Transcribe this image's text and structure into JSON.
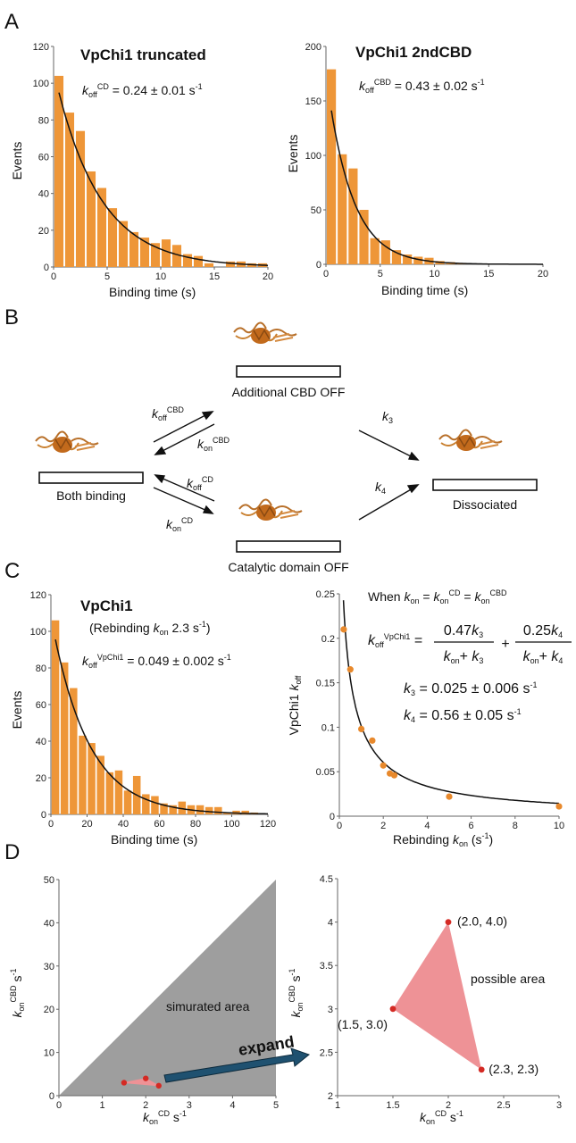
{
  "colors": {
    "bar": "#ee9638",
    "fit": "#111111",
    "point": "#e8892c",
    "sim": "#9e9e9e",
    "poss": "#ee9296",
    "red": "#d42a24",
    "arrow": "#1f5170"
  },
  "panels": {
    "a": "A",
    "b": "B",
    "c": "C",
    "d": "D"
  },
  "panelB": {
    "states": {
      "top": "Additional CBD OFF",
      "left": "Both binding",
      "bottom": "Catalytic domain OFF",
      "right": "Dissociated"
    },
    "rates": {
      "koffCBD": {
        "base": "k",
        "sub": "off",
        "sup": "CBD"
      },
      "konCBD": {
        "base": "k",
        "sub": "on",
        "sup": "CBD"
      },
      "koffCD": {
        "base": "k",
        "sub": "off",
        "sup": "CD"
      },
      "konCD": {
        "base": "k",
        "sub": "on",
        "sup": "CD"
      },
      "k3": {
        "base": "k",
        "sub": "3"
      },
      "k4": {
        "base": "k",
        "sub": "4"
      }
    }
  },
  "chart_data": [
    {
      "id": "A1",
      "type": "bar",
      "title": "VpChi1 truncated",
      "xlabel": "Binding time (s)",
      "ylabel": "Events",
      "xlim": [
        0,
        20
      ],
      "ylim": [
        0,
        120
      ],
      "xticks": [
        0,
        5,
        10,
        15,
        20
      ],
      "yticks": [
        0,
        20,
        40,
        60,
        80,
        100,
        120
      ],
      "bin_width": 1,
      "x": [
        0.5,
        1.5,
        2.5,
        3.5,
        4.5,
        5.5,
        6.5,
        7.5,
        8.5,
        9.5,
        10.5,
        11.5,
        12.5,
        13.5,
        14.5,
        15.5,
        16.5,
        17.5,
        18.5,
        19.5
      ],
      "values": [
        104,
        84,
        74,
        52,
        43,
        32,
        25,
        19,
        16,
        13,
        15,
        12,
        7,
        6,
        2,
        0,
        3,
        3,
        2,
        2
      ],
      "fit": {
        "A": 107,
        "k": 0.24
      },
      "annotation": {
        "base": "k",
        "sub": "off",
        "sup": "CD",
        "rest": " = 0.24 ± 0.01 s",
        "unitsup": "-1"
      }
    },
    {
      "id": "A2",
      "type": "bar",
      "title": "VpChi1 2ndCBD",
      "xlabel": "Binding time (s)",
      "ylabel": "Events",
      "xlim": [
        0,
        20
      ],
      "ylim": [
        0,
        200
      ],
      "xticks": [
        0,
        5,
        10,
        15,
        20
      ],
      "yticks": [
        0,
        50,
        100,
        150,
        200
      ],
      "bin_width": 1,
      "x": [
        0.5,
        1.5,
        2.5,
        3.5,
        4.5,
        5.5,
        6.5,
        7.5,
        8.5,
        9.5,
        10.5,
        11.5,
        12.5
      ],
      "values": [
        179,
        101,
        88,
        50,
        24,
        22,
        13,
        9,
        7,
        6,
        3,
        2,
        1
      ],
      "fit": {
        "A": 175,
        "k": 0.43
      },
      "annotation": {
        "base": "k",
        "sub": "off",
        "sup": "CBD",
        "rest": " = 0.43 ± 0.02 s",
        "unitsup": "-1"
      }
    },
    {
      "id": "C1",
      "type": "bar",
      "title": "VpChi1",
      "subtitle": {
        "pre": "(Rebinding ",
        "base": "k",
        "sub": "on",
        "post": " 2.3 s",
        "unitsup": "-1",
        "close": ")"
      },
      "xlabel": "Binding time (s)",
      "ylabel": "Events",
      "xlim": [
        0,
        120
      ],
      "ylim": [
        0,
        120
      ],
      "xticks": [
        0,
        20,
        40,
        60,
        80,
        100,
        120
      ],
      "yticks": [
        0,
        20,
        40,
        60,
        80,
        100,
        120
      ],
      "bin_width": 5,
      "x": [
        2.5,
        7.5,
        12.5,
        17.5,
        22.5,
        27.5,
        32.5,
        37.5,
        42.5,
        47.5,
        52.5,
        57.5,
        62.5,
        67.5,
        72.5,
        77.5,
        82.5,
        87.5,
        92.5,
        97.5,
        102.5,
        107.5,
        112.5
      ],
      "values": [
        106,
        83,
        69,
        43,
        39,
        32,
        23,
        24,
        13,
        21,
        11,
        10,
        6,
        5,
        7,
        5,
        5,
        4,
        4,
        1,
        2,
        2,
        1
      ],
      "fit": {
        "A": 108,
        "k": 0.049
      },
      "annotation": {
        "base": "k",
        "sub": "off",
        "sup": "VpChi1",
        "rest": " = 0.049 ± 0.002 s",
        "unitsup": "-1"
      }
    },
    {
      "id": "C2",
      "type": "scatter",
      "xlabel": "Rebinding k on (s-1)",
      "ylabel": "VpChi1 k off",
      "xlim": [
        0,
        10
      ],
      "ylim": [
        0,
        0.25
      ],
      "xticks": [
        0,
        2,
        4,
        6,
        8,
        10
      ],
      "yticks": [
        0,
        0.05,
        0.1,
        0.15,
        0.2,
        0.25
      ],
      "x": [
        0.2,
        0.5,
        1.0,
        1.5,
        2.0,
        2.3,
        2.5,
        5.0,
        10.0
      ],
      "y": [
        0.21,
        0.165,
        0.098,
        0.085,
        0.057,
        0.048,
        0.046,
        0.022,
        0.011
      ],
      "fit": {
        "k3": 0.025,
        "k4": 0.56
      },
      "equation": {
        "when": "When k on = k on CD = k on CBD",
        "lhs": "koff VpChi1 =",
        "frac1_num": "0.47k3",
        "frac1_den": "kon+ k3",
        "plus": "+",
        "frac2_num": "0.25k4",
        "frac2_den": "kon+ k4",
        "k3_value": "k3 = 0.025 ± 0.006 s-1",
        "k4_value": "k4 = 0.56 ± 0.05 s-1"
      }
    },
    {
      "id": "D1",
      "type": "area",
      "xlabel": "kon CD s-1",
      "ylabel": "kon CBD s-1",
      "xlim": [
        0,
        5
      ],
      "ylim": [
        0,
        50
      ],
      "xticks": [
        0,
        1,
        2,
        3,
        4,
        5
      ],
      "yticks": [
        0,
        10,
        20,
        30,
        40,
        50
      ],
      "region": [
        [
          0,
          0
        ],
        [
          5,
          50
        ],
        [
          5,
          0
        ]
      ],
      "region_label": "simurated area",
      "points": [
        [
          1.5,
          3.0
        ],
        [
          2.0,
          4.0
        ],
        [
          2.3,
          2.3
        ]
      ],
      "arrow_label": "expand"
    },
    {
      "id": "D2",
      "type": "area",
      "xlabel": "kon CD s-1",
      "ylabel": "kon CBD s-1",
      "xlim": [
        1,
        3
      ],
      "ylim": [
        2,
        4.5
      ],
      "xticks": [
        1,
        1.5,
        2,
        2.5,
        3
      ],
      "yticks": [
        2,
        2.5,
        3,
        3.5,
        4,
        4.5
      ],
      "region": [
        [
          2.0,
          4.0
        ],
        [
          1.5,
          3.0
        ],
        [
          2.3,
          2.3
        ]
      ],
      "region_label": "possible area",
      "points": [
        [
          2.0,
          4.0
        ],
        [
          1.5,
          3.0
        ],
        [
          2.3,
          2.3
        ]
      ],
      "point_labels": [
        "(2.0, 4.0)",
        "(1.5, 3.0)",
        "(2.3, 2.3)"
      ]
    }
  ]
}
